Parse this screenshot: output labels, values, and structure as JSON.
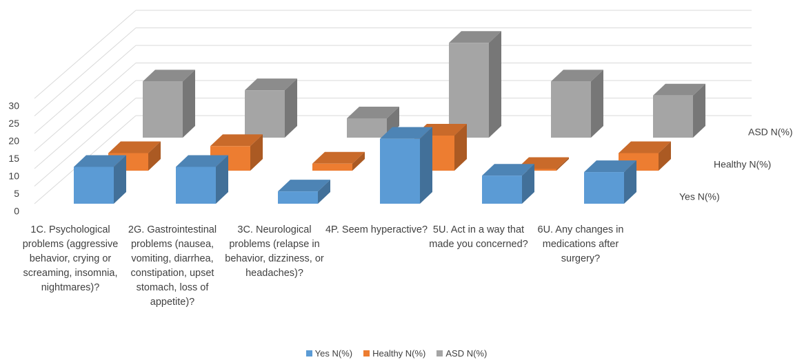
{
  "chart_data": {
    "type": "bar3d",
    "categories": [
      "1C. Psychological problems (aggressive behavior, crying or screaming, insomnia, nightmares)?",
      "2G. Gastrointestinal problems (nausea, vomiting, diarrhea, constipation, upset stomach, loss of appetite)?",
      "3C. Neurological problems (relapse in behavior, dizziness, or headaches)?",
      "4P. Seem hyperactive?",
      "5U. Act in a way that made you concerned?",
      "6U. Any changes in medications after surgery?"
    ],
    "series": [
      {
        "name": "Yes N(%)",
        "color": "#5b9bd5",
        "values": [
          10.5,
          10.5,
          3.5,
          18.5,
          8,
          9
        ]
      },
      {
        "name": "Healthy N(%)",
        "color": "#ed7d31",
        "values": [
          5,
          7,
          2,
          10,
          0.5,
          5
        ]
      },
      {
        "name": "ASD N(%)",
        "color": "#a5a5a5",
        "values": [
          16,
          13.5,
          5.5,
          27,
          16,
          12
        ]
      }
    ],
    "ylim": [
      0,
      30
    ],
    "yticks": [
      0,
      5,
      10,
      15,
      20,
      25,
      30
    ],
    "grid": true,
    "legend": "bottom"
  }
}
